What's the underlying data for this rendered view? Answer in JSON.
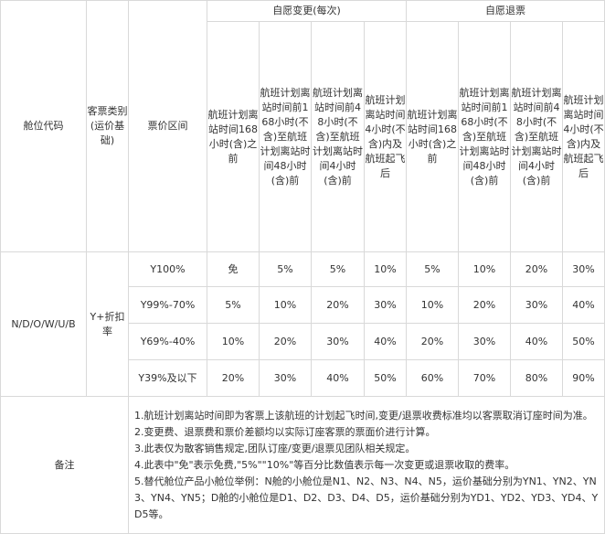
{
  "headers": {
    "cabin_code": "舱位代码",
    "ticket_type": "客票类别(运价基础)",
    "fare_range": "票价区间",
    "voluntary_change": "自愿变更(每次)",
    "voluntary_refund": "自愿退票",
    "periods": [
      "航班计划离站时间168小时(含)之前",
      "航班计划离站时间前168小时(不含)至航班计划离站时间48小时(含)前",
      "航班计划离站时间前48小时(不含)至航班计划离站时间4小时(含)前",
      "航班计划离站时间4小时(不含)内及航班起飞后"
    ]
  },
  "body": {
    "cabin_codes": "N/D/O/W/U/B",
    "ticket_type": "Y+折扣率",
    "rows": [
      {
        "fare": "Y100%",
        "change": [
          "免",
          "5%",
          "5%",
          "10%"
        ],
        "refund": [
          "5%",
          "10%",
          "20%",
          "30%"
        ]
      },
      {
        "fare": "Y99%-70%",
        "change": [
          "5%",
          "10%",
          "20%",
          "30%"
        ],
        "refund": [
          "10%",
          "20%",
          "30%",
          "40%"
        ]
      },
      {
        "fare": "Y69%-40%",
        "change": [
          "10%",
          "20%",
          "30%",
          "40%"
        ],
        "refund": [
          "20%",
          "30%",
          "40%",
          "50%"
        ]
      },
      {
        "fare": "Y39%及以下",
        "change": [
          "20%",
          "30%",
          "40%",
          "50%"
        ],
        "refund": [
          "60%",
          "70%",
          "80%",
          "90%"
        ]
      }
    ]
  },
  "notes": {
    "label": "备注",
    "items": [
      "1.航班计划离站时间即为客票上该航班的计划起飞时间,变更/退票收费标准均以客票取消订座时间为准。",
      "2.变更费、退票费和票价差额均以实际订座客票的票面价进行计算。",
      "3.此表仅为散客销售规定,团队订座/变更/退票见团队相关规定。",
      "4.此表中\"免\"表示免费,\"5%\"\"10%\"等百分比数值表示每一次变更或退票收取的费率。",
      "5.替代舱位产品小舱位举例：N舱的小舱位是N1、N2、N3、N4、N5，运价基础分别为YN1、YN2、YN3、YN4、YN5；D舱的小舱位是D1、D2、D3、D4、D5，运价基础分别为YD1、YD2、YD3、YD4、YD5等。"
    ]
  }
}
